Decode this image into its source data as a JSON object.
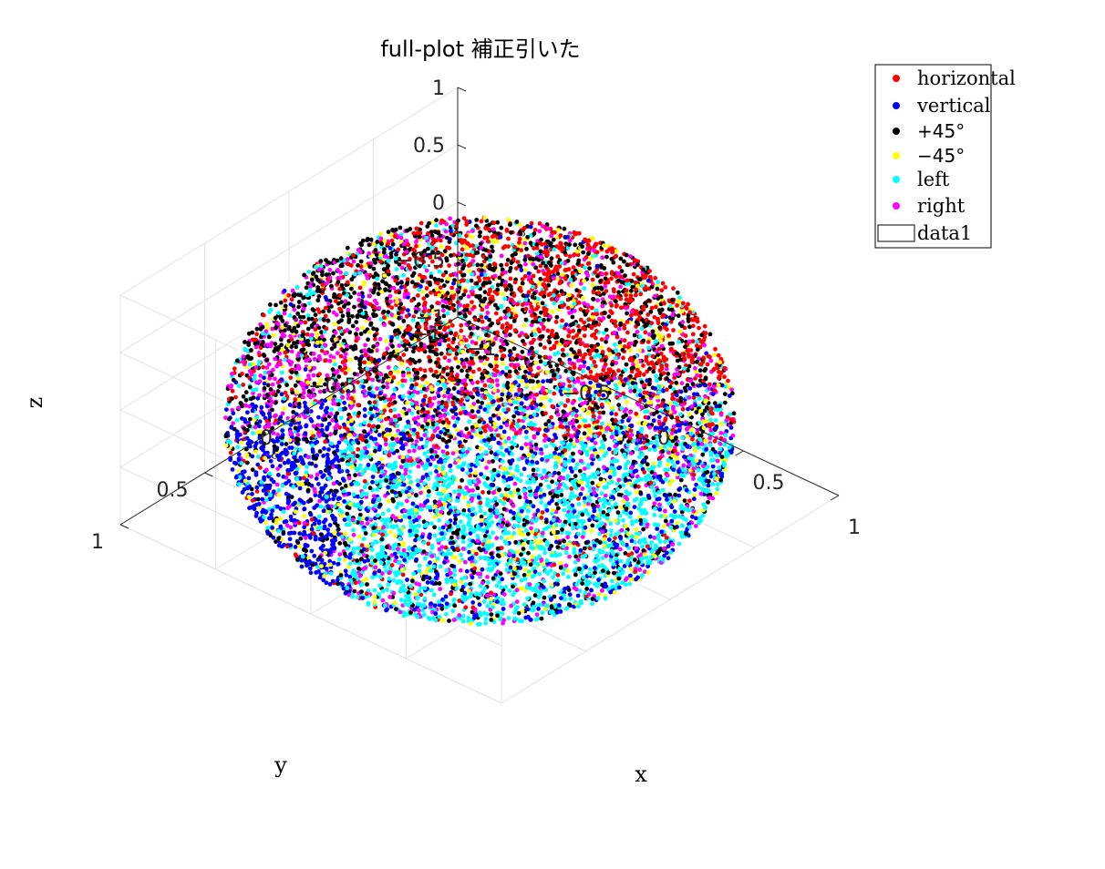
{
  "chart_data": {
    "type": "scatter",
    "projection": "3d",
    "title": "full-plot 補正引いた",
    "xlabel": "x",
    "ylabel": "y",
    "zlabel": "z",
    "xlim": [
      -1,
      1
    ],
    "ylim": [
      -1,
      1
    ],
    "zlim": [
      -1,
      1
    ],
    "xticks": [
      -1,
      -0.5,
      0,
      0.5,
      1
    ],
    "yticks": [
      -1,
      -0.5,
      0,
      0.5,
      1
    ],
    "zticks": [
      -1,
      -0.5,
      0,
      0.5,
      1
    ],
    "xtick_labels": [
      "−1",
      "−0.5",
      "0",
      "0.5",
      "1"
    ],
    "ytick_labels": [
      "−1",
      "−0.5",
      "0",
      "0.5",
      "1"
    ],
    "ztick_labels": [
      "−1",
      "−0.5",
      "0",
      "0.5",
      "1"
    ],
    "grid": true,
    "legend_position": "top-right",
    "shape": "unit sphere surface",
    "series": [
      {
        "name": "horizontal",
        "color": "#ff0000",
        "concentration": "upper back (+y, +z)"
      },
      {
        "name": "vertical",
        "color": "#0000ff",
        "concentration": "lower left (−x, +y, −z)"
      },
      {
        "name": "+45°",
        "color": "#000000",
        "concentration": "upper left"
      },
      {
        "name": "−45°",
        "color": "#ffff00",
        "concentration": "scattered"
      },
      {
        "name": "left",
        "color": "#00ffff",
        "concentration": "lower front (−y, −z)"
      },
      {
        "name": "right",
        "color": "#ff00ff",
        "concentration": "left rim (−x)"
      }
    ],
    "extra_legend_entry": {
      "name": "data1",
      "style": "box"
    }
  }
}
